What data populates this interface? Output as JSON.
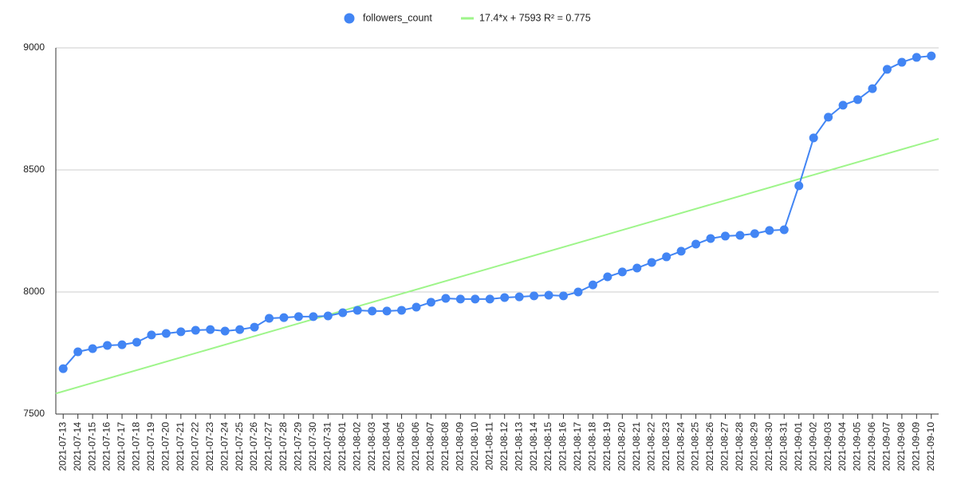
{
  "chart_data": {
    "type": "line",
    "categories": [
      "2021-07-13",
      "2021-07-14",
      "2021-07-15",
      "2021-07-16",
      "2021-07-17",
      "2021-07-18",
      "2021-07-19",
      "2021-07-20",
      "2021-07-21",
      "2021-07-22",
      "2021-07-23",
      "2021-07-24",
      "2021-07-25",
      "2021-07-26",
      "2021-07-27",
      "2021-07-28",
      "2021-07-29",
      "2021-07-30",
      "2021-07-31",
      "2021-08-01",
      "2021-08-02",
      "2021-08-03",
      "2021-08-04",
      "2021-08-05",
      "2021-08-06",
      "2021-08-07",
      "2021-08-08",
      "2021-08-09",
      "2021-08-10",
      "2021-08-11",
      "2021-08-12",
      "2021-08-13",
      "2021-08-14",
      "2021-08-15",
      "2021-08-16",
      "2021-08-17",
      "2021-08-18",
      "2021-08-19",
      "2021-08-20",
      "2021-08-21",
      "2021-08-22",
      "2021-08-23",
      "2021-08-24",
      "2021-08-25",
      "2021-08-26",
      "2021-08-27",
      "2021-08-28",
      "2021-08-29",
      "2021-08-30",
      "2021-08-31",
      "2021-09-01",
      "2021-09-02",
      "2021-09-03",
      "2021-09-04",
      "2021-09-05",
      "2021-09-06",
      "2021-09-07",
      "2021-09-08",
      "2021-09-09",
      "2021-09-10"
    ],
    "series": [
      {
        "name": "followers_count",
        "color": "#4285f4",
        "values": [
          7686,
          7755,
          7768,
          7781,
          7784,
          7794,
          7824,
          7830,
          7837,
          7843,
          7846,
          7840,
          7846,
          7856,
          7892,
          7895,
          7899,
          7899,
          7902,
          7915,
          7925,
          7922,
          7922,
          7925,
          7938,
          7958,
          7974,
          7971,
          7971,
          7971,
          7977,
          7980,
          7984,
          7987,
          7984,
          8000,
          8029,
          8062,
          8082,
          8098,
          8121,
          8144,
          8167,
          8196,
          8219,
          8229,
          8232,
          8239,
          8252,
          8255,
          8435,
          8631,
          8716,
          8765,
          8788,
          8833,
          8912,
          8941,
          8961,
          8967
        ]
      }
    ],
    "trendline": {
      "label": "17.4*x + 7593 R² = 0.775",
      "color": "#9ef58a"
    },
    "ylim": [
      7500,
      9000
    ],
    "yticks": [
      7500,
      8000,
      8500,
      9000
    ],
    "grid": true,
    "legend": "top"
  }
}
